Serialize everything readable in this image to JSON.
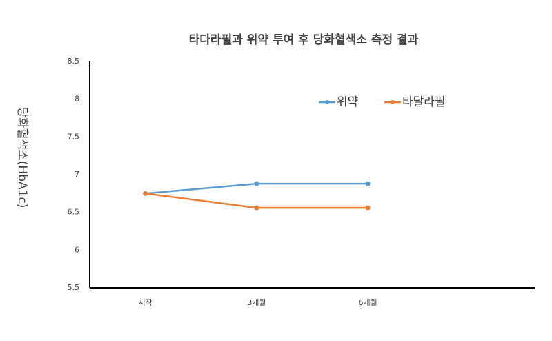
{
  "chart_data": {
    "type": "line",
    "title": "타다라필과 위약 투여 후 당화혈색소 측정 결과",
    "y_label": "당화혈색소(HbA1c)",
    "categories": [
      "시작",
      "3개월",
      "6개월",
      null
    ],
    "series": [
      {
        "name": "위약",
        "color": "#5b9bd5",
        "values": [
          6.75,
          6.88,
          6.88,
          null
        ]
      },
      {
        "name": "타달라필",
        "color": "#ed7d31",
        "values": [
          6.75,
          6.56,
          6.56,
          null
        ]
      }
    ],
    "ylim": [
      5.5,
      8.5
    ],
    "yticks": [
      5.5,
      6,
      6.5,
      7,
      7.5,
      8,
      8.5
    ],
    "grid": false
  }
}
